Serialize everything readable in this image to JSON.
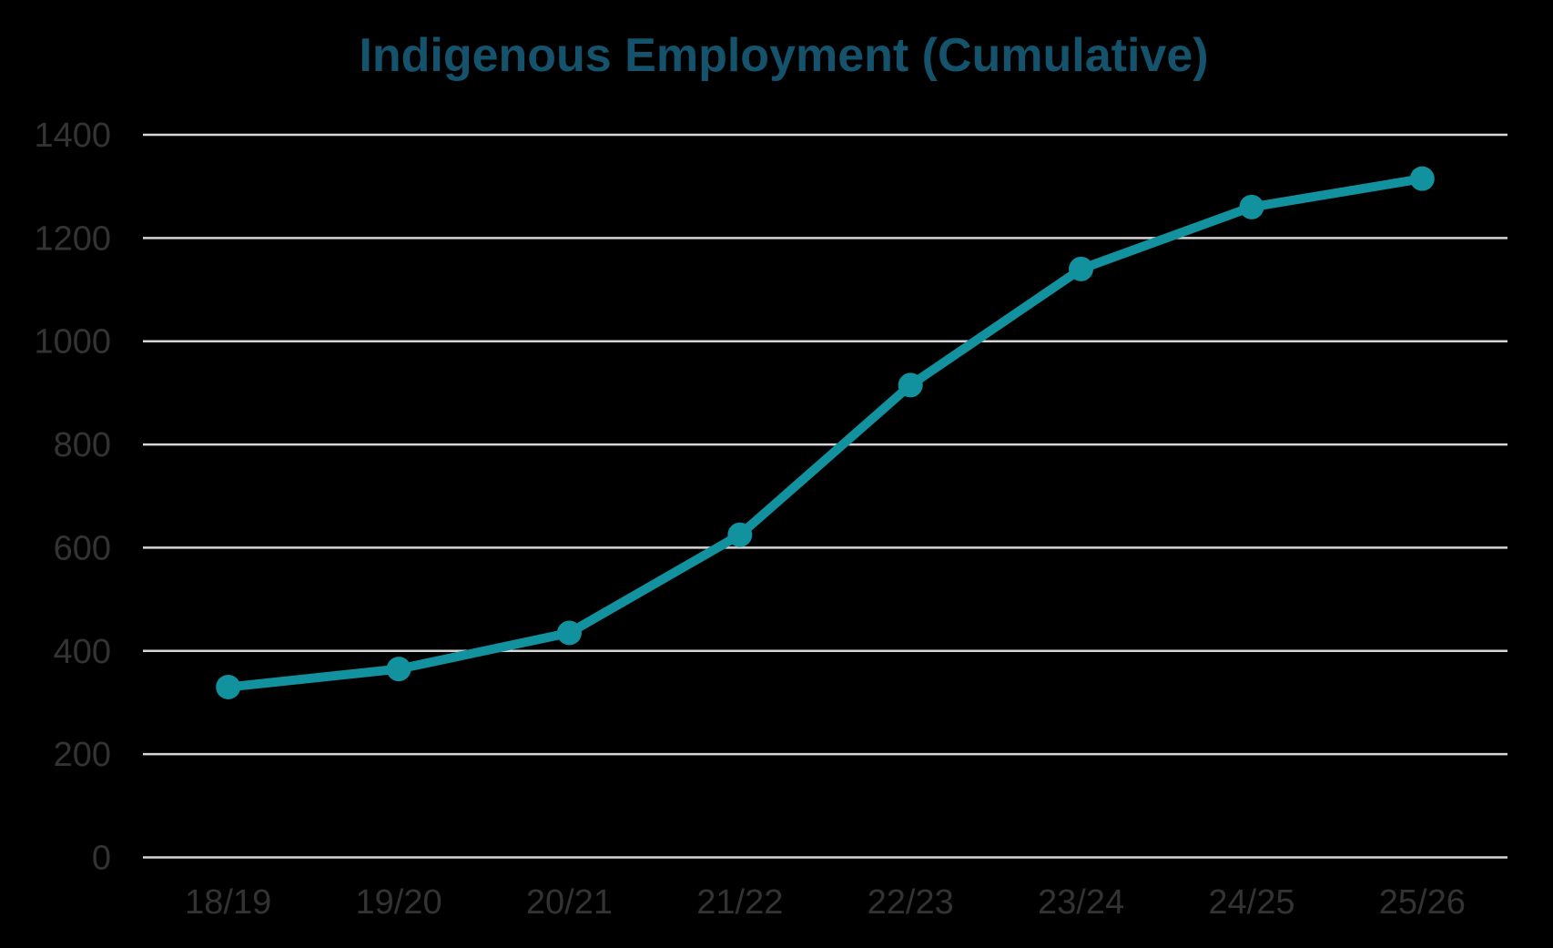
{
  "chart_data": {
    "type": "line",
    "title": "Indigenous Employment (Cumulative)",
    "categories": [
      "18/19",
      "19/20",
      "20/21",
      "21/22",
      "22/23",
      "23/24",
      "24/25",
      "25/26"
    ],
    "values": [
      330,
      365,
      435,
      625,
      915,
      1140,
      1260,
      1315
    ],
    "xlabel": "",
    "ylabel": "",
    "ylim": [
      0,
      1400
    ],
    "yticks": [
      0,
      200,
      400,
      600,
      800,
      1000,
      1200,
      1400
    ],
    "grid": true,
    "legend": "none",
    "colors": {
      "line": "#12919e",
      "marker": "#12919e",
      "title": "#14536b",
      "tick_labels": "#333333",
      "gridline": "#d6d6d6",
      "background": "#000000"
    }
  }
}
